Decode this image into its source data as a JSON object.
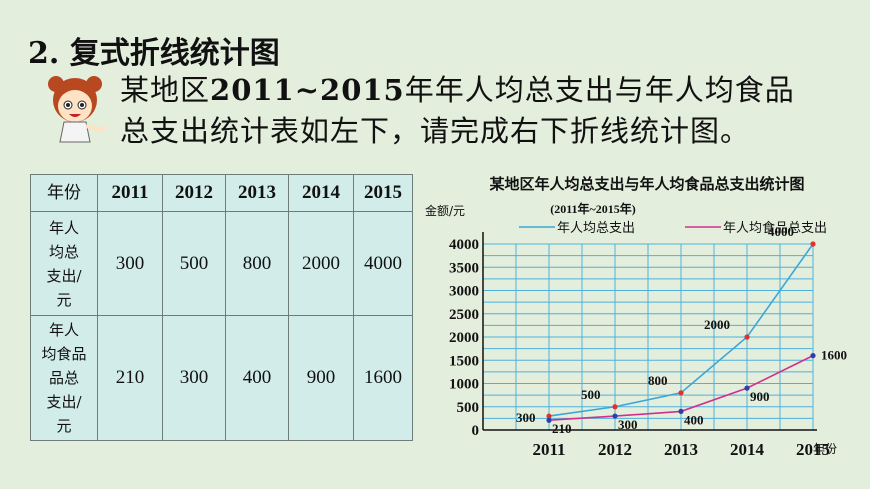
{
  "heading": "2. 复式折线统计图",
  "intro": {
    "line1_a": "某地区",
    "line1_b": "2011~2015",
    "line1_c": "年年人均总支出与年人均食品",
    "line2": "总支出统计表如左下，请完成右下折线统计图。"
  },
  "table": {
    "header": [
      "年份",
      "2011",
      "2012",
      "2013",
      "2014",
      "2015"
    ],
    "rows": [
      {
        "label_lines": [
          "年人",
          "均总",
          "支出/",
          "元"
        ],
        "values": [
          "300",
          "500",
          "800",
          "2000",
          "4000"
        ]
      },
      {
        "label_lines": [
          "年人",
          "均食品",
          "品总",
          "支出/",
          "元"
        ],
        "values": [
          "210",
          "300",
          "400",
          "900",
          "1600"
        ]
      }
    ]
  },
  "chart_data": {
    "type": "line",
    "title": "某地区年人均总支出与年人均食品总支出统计图",
    "subtitle": "(2011年~2015年)",
    "ylabel": "金额/元",
    "xlabel": "年份",
    "categories": [
      "2011",
      "2012",
      "2013",
      "2014",
      "2015"
    ],
    "ylim": [
      0,
      4000
    ],
    "yticks": [
      0,
      500,
      1000,
      1500,
      2000,
      2500,
      3000,
      3500,
      4000
    ],
    "grid": true,
    "legend_position": "top",
    "series": [
      {
        "name": "年人均总支出",
        "values": [
          300,
          500,
          800,
          2000,
          4000
        ],
        "color": "#3aa7d8",
        "marker_color": "#e0322b"
      },
      {
        "name": "年人均食品总支出",
        "values": [
          210,
          300,
          400,
          900,
          1600
        ],
        "color": "#d0308c",
        "marker_color": "#2f3fa8"
      }
    ],
    "point_labels": [
      [
        "300",
        "500",
        "800",
        "2000",
        "4000"
      ],
      [
        "210",
        "300",
        "400",
        "900",
        "1600"
      ]
    ]
  },
  "colors": {
    "background": "#e4eedd",
    "grid": "#4fb0dc",
    "table_bg": "#d2ede9"
  }
}
